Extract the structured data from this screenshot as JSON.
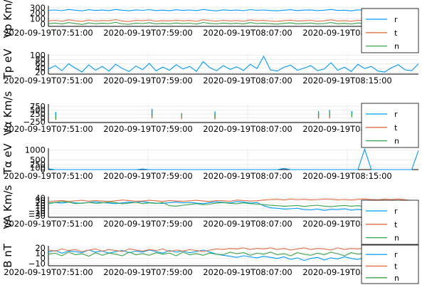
{
  "chart_data": [
    {
      "type": "line",
      "ylabel": "Vp Km/s",
      "ylim": [
        -40,
        340
      ],
      "yticks": [
        0,
        100,
        200,
        300
      ],
      "xtick_labels": [
        "2020-09-19T07:51:00",
        "2020-09-19T07:59:00",
        "2020-09-19T08:07:00",
        "2020-09-19T08:15:00"
      ],
      "legend": "top-right",
      "series": [
        {
          "name": "r",
          "color": "#009af9",
          "values": [
            255,
            262,
            248,
            270,
            258,
            244,
            266,
            252,
            260,
            249,
            271,
            257,
            246,
            263,
            255,
            268,
            250,
            259,
            247,
            265,
            254,
            261,
            249,
            270,
            256,
            245,
            264,
            253,
            260,
            248,
            268,
            255,
            262,
            251,
            246,
            258,
            266,
            250,
            259,
            263,
            249,
            257,
            270,
            252,
            258,
            245,
            264,
            256,
            261,
            250,
            247,
            259,
            268,
            253,
            260,
            255
          ]
        },
        {
          "name": "t",
          "color": "#e26f46",
          "values": [
            60,
            72,
            55,
            80,
            64,
            50,
            75,
            58,
            68,
            62,
            85,
            57,
            49,
            70,
            63,
            78,
            54,
            66,
            59,
            73,
            61,
            69,
            52,
            82,
            65,
            56,
            71,
            60,
            67,
            55,
            79,
            63,
            70,
            58,
            51,
            66,
            74,
            57,
            64,
            72,
            55,
            62,
            81,
            59,
            66,
            53,
            73,
            64,
            68,
            57,
            50,
            67,
            76,
            60,
            65,
            62
          ]
        },
        {
          "name": "n",
          "color": "#3da44d",
          "values": [
            10,
            22,
            5,
            30,
            14,
            -5,
            24,
            8,
            18,
            12,
            35,
            6,
            -2,
            20,
            13,
            28,
            4,
            16,
            9,
            23,
            11,
            19,
            2,
            32,
            15,
            6,
            21,
            10,
            17,
            5,
            29,
            13,
            20,
            8,
            1,
            16,
            24,
            7,
            14,
            22,
            5,
            12,
            31,
            9,
            16,
            3,
            23,
            14,
            18,
            7,
            0,
            17,
            26,
            10,
            -15,
            -20
          ]
        }
      ]
    },
    {
      "type": "line",
      "ylabel": "Tp eV",
      "ylim": [
        12,
        105
      ],
      "yticks": [
        20,
        40,
        60,
        80,
        100
      ],
      "xtick_labels": [
        "2020-09-19T07:51:00",
        "2020-09-19T07:59:00",
        "2020-09-19T08:07:00",
        "2020-09-19T08:15:00"
      ],
      "series": [
        {
          "name": "",
          "color": "#009af9",
          "values": [
            35,
            52,
            28,
            60,
            40,
            22,
            55,
            30,
            48,
            26,
            58,
            38,
            24,
            50,
            33,
            62,
            27,
            45,
            30,
            56,
            36,
            48,
            25,
            70,
            42,
            28,
            52,
            34,
            46,
            29,
            58,
            38,
            95,
            32,
            26,
            44,
            54,
            30,
            40,
            52,
            28,
            36,
            65,
            30,
            44,
            24,
            58,
            38,
            48,
            26,
            22,
            42,
            56,
            32,
            28,
            60
          ]
        }
      ]
    },
    {
      "type": "scatter",
      "ylabel": "Vα Km/s",
      "ylim": [
        -300,
        900
      ],
      "yticks": [
        -250,
        0,
        250,
        500,
        750
      ],
      "xtick_labels": [
        "2020-09-19T07:51:00",
        "2020-09-19T07:59:00",
        "2020-09-19T08:07:00",
        "2020-09-19T08:15:00"
      ],
      "legend": "top-right",
      "series": [
        {
          "name": "r",
          "color": "#009af9",
          "points": [
            [
              0.02,
              250
            ],
            [
              0.28,
              450
            ],
            [
              0.28,
              300
            ],
            [
              0.45,
              280
            ],
            [
              0.73,
              300
            ],
            [
              0.76,
              380
            ],
            [
              0.76,
              200
            ],
            [
              0.82,
              300
            ],
            [
              0.86,
              350
            ],
            [
              0.98,
              700
            ],
            [
              0.985,
              500
            ]
          ]
        },
        {
          "name": "t",
          "color": "#e26f46",
          "points": [
            [
              0.02,
              0
            ],
            [
              0.28,
              100
            ],
            [
              0.36,
              50
            ],
            [
              0.45,
              50
            ],
            [
              0.73,
              80
            ],
            [
              0.76,
              100
            ],
            [
              0.86,
              60
            ],
            [
              0.98,
              150
            ],
            [
              0.985,
              300
            ]
          ]
        },
        {
          "name": "n",
          "color": "#3da44d",
          "points": [
            [
              0.02,
              50
            ],
            [
              0.28,
              200
            ],
            [
              0.36,
              180
            ],
            [
              0.45,
              120
            ],
            [
              0.73,
              150
            ],
            [
              0.76,
              250
            ],
            [
              0.82,
              180
            ],
            [
              0.86,
              150
            ],
            [
              0.98,
              400
            ],
            [
              0.985,
              250
            ]
          ]
        }
      ]
    },
    {
      "type": "line",
      "ylabel": "Tα eV",
      "ylim": [
        0,
        1100
      ],
      "yticks": [
        0,
        100,
        250,
        500,
        1000
      ],
      "xtick_labels": [
        "2020-09-19T07:51:00",
        "2020-09-19T07:59:00",
        "2020-09-19T08:07:00",
        "2020-09-19T08:15:00"
      ],
      "series": [
        {
          "name": "",
          "color": "#009af9",
          "values": [
            40,
            0,
            0,
            0,
            0,
            0,
            0,
            0,
            0,
            0,
            0,
            0,
            0,
            0,
            30,
            0,
            0,
            0,
            0,
            0,
            0,
            0,
            0,
            0,
            0,
            0,
            0,
            0,
            0,
            0,
            0,
            0,
            0,
            0,
            0,
            60,
            0,
            0,
            0,
            0,
            0,
            0,
            0,
            0,
            0,
            0,
            0,
            1050,
            0,
            0,
            0,
            0,
            0,
            0,
            0,
            980
          ]
        }
      ]
    },
    {
      "type": "line",
      "ylabel": "VA Km/s",
      "ylim": [
        -35,
        45
      ],
      "yticks": [
        -30,
        -20,
        -10,
        0,
        10,
        20,
        30,
        40
      ],
      "xtick_labels": [
        "2020-09-19T07:51:00",
        "2020-09-19T07:59:00",
        "2020-09-19T08:07:00",
        "2020-09-19T08:15:00"
      ],
      "legend": "top-right",
      "series": [
        {
          "name": "r",
          "color": "#009af9",
          "values": [
            18,
            22,
            20,
            24,
            21,
            19,
            23,
            25,
            22,
            20,
            18,
            21,
            24,
            23,
            26,
            22,
            20,
            19,
            22,
            24,
            21,
            23,
            20,
            18,
            22,
            25,
            23,
            21,
            26,
            24,
            20,
            22,
            10,
            2,
            0,
            -3,
            -2,
            0,
            -5,
            -6,
            -3,
            -8,
            -4,
            -5,
            -2,
            -7,
            -4,
            -8,
            -6,
            -10,
            -4,
            -3,
            -6,
            -2,
            5,
            -10
          ]
        },
        {
          "name": "t",
          "color": "#e26f46",
          "values": [
            25,
            28,
            30,
            26,
            29,
            31,
            27,
            30,
            28,
            26,
            29,
            32,
            30,
            27,
            28,
            31,
            29,
            26,
            30,
            28,
            27,
            29,
            31,
            28,
            26,
            30,
            29,
            27,
            32,
            30,
            28,
            29,
            32,
            34,
            35,
            33,
            36,
            34,
            35,
            33,
            34,
            36,
            35,
            33,
            34,
            32,
            35,
            36,
            34,
            33,
            35,
            34,
            36,
            33,
            30,
            28
          ]
        },
        {
          "name": "n",
          "color": "#3da44d",
          "values": [
            20,
            22,
            26,
            24,
            18,
            20,
            23,
            19,
            21,
            24,
            22,
            17,
            20,
            23,
            18,
            21,
            19,
            22,
            10,
            8,
            12,
            15,
            18,
            14,
            16,
            20,
            22,
            19,
            17,
            21,
            18,
            16,
            14,
            12,
            10,
            8,
            9,
            11,
            7,
            10,
            12,
            8,
            6,
            9,
            11,
            8,
            10,
            7,
            9,
            12,
            10,
            8,
            11,
            13,
            5,
            6
          ]
        }
      ]
    },
    {
      "type": "line",
      "ylabel": "B nT",
      "ylim": [
        -14,
        24
      ],
      "yticks": [
        -10,
        0,
        10,
        20
      ],
      "xtick_labels": [
        "2020-09-19T07:51:00",
        "2020-09-19T07:59:00",
        "2020-09-19T08:07:00",
        "2020-09-19T08:15:00"
      ],
      "legend": "top-right",
      "series": [
        {
          "name": "r",
          "color": "#009af9",
          "values": [
            12,
            15,
            10,
            14,
            13,
            11,
            16,
            12,
            14,
            10,
            13,
            15,
            11,
            14,
            12,
            16,
            13,
            10,
            15,
            12,
            14,
            11,
            13,
            16,
            12,
            8,
            6,
            4,
            2,
            5,
            3,
            1,
            4,
            2,
            0,
            3,
            -2,
            1,
            -4,
            0,
            2,
            -3,
            1,
            -1,
            3,
            0,
            -2,
            2,
            -4,
            0,
            -6,
            -2,
            1,
            -3,
            -1,
            2
          ]
        },
        {
          "name": "t",
          "color": "#e26f46",
          "values": [
            16,
            14,
            18,
            15,
            17,
            13,
            16,
            18,
            14,
            17,
            15,
            13,
            18,
            16,
            14,
            17,
            15,
            18,
            13,
            16,
            14,
            17,
            15,
            13,
            16,
            18,
            17,
            19,
            18,
            20,
            17,
            19,
            18,
            20,
            17,
            19,
            16,
            18,
            20,
            17,
            19,
            18,
            16,
            20,
            17,
            19,
            18,
            20,
            16,
            18,
            17,
            19,
            15,
            18,
            20,
            17
          ]
        },
        {
          "name": "n",
          "color": "#3da44d",
          "values": [
            8,
            10,
            5,
            12,
            7,
            9,
            4,
            11,
            6,
            10,
            8,
            5,
            12,
            7,
            9,
            6,
            11,
            8,
            10,
            5,
            12,
            7,
            9,
            6,
            10,
            8,
            7,
            12,
            9,
            11,
            6,
            10,
            8,
            12,
            7,
            9,
            5,
            11,
            8,
            6,
            10,
            7,
            12,
            9,
            5,
            11,
            8,
            10,
            6,
            9,
            7,
            11,
            8,
            10,
            6,
            9
          ]
        }
      ]
    }
  ]
}
